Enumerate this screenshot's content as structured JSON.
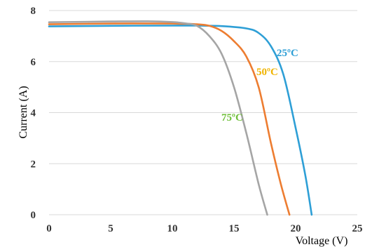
{
  "chart_data": {
    "type": "line",
    "title": "",
    "xlabel": "Voltage (V)",
    "ylabel": "Current (A)",
    "xlim": [
      0,
      25
    ],
    "ylim": [
      0,
      8
    ],
    "x_ticks": [
      "0",
      "5",
      "10",
      "15",
      "20",
      "25"
    ],
    "y_ticks": [
      "0",
      "2",
      "4",
      "6",
      "8"
    ],
    "grid": "horizontal",
    "series": [
      {
        "name": "25ºC",
        "color": "#2e9fd6",
        "x": [
          0,
          5,
          10,
          12,
          14,
          16,
          17,
          18,
          19,
          20,
          20.8,
          21.3
        ],
        "y": [
          7.38,
          7.4,
          7.41,
          7.41,
          7.39,
          7.3,
          7.12,
          6.6,
          5.5,
          3.4,
          1.5,
          0
        ]
      },
      {
        "name": "50ºC",
        "color": "#ed7d31",
        "x": [
          0,
          5,
          10,
          12,
          13,
          14,
          15,
          16,
          17,
          18,
          18.8,
          19.5
        ],
        "y": [
          7.46,
          7.49,
          7.49,
          7.46,
          7.4,
          7.2,
          6.8,
          6.2,
          5.0,
          2.8,
          1.2,
          0
        ]
      },
      {
        "name": "75ºC",
        "color": "#a5a5a5",
        "x": [
          0,
          5,
          8,
          10,
          11,
          12,
          13,
          14,
          15,
          16,
          17,
          17.7
        ],
        "y": [
          7.54,
          7.57,
          7.58,
          7.55,
          7.5,
          7.4,
          7.0,
          6.3,
          5.0,
          3.2,
          1.2,
          0
        ]
      }
    ],
    "label_colors": {
      "25ºC": "#2e9fd6",
      "50ºC": "#f0b400",
      "75ºC": "#6fbf3a"
    }
  }
}
